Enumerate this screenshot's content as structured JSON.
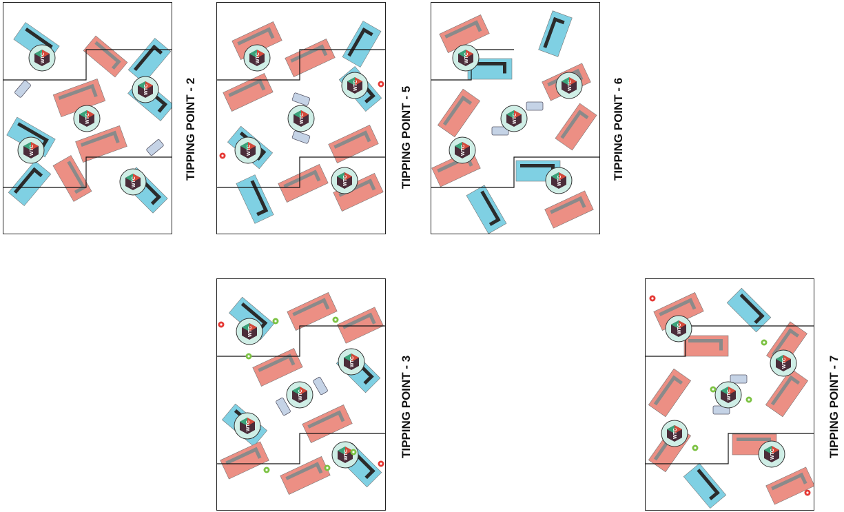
{
  "panels": [
    {
      "id": "tp2",
      "title": "TIPPING POINT - 2",
      "logo_label": "WTC"
    },
    {
      "id": "tp5",
      "title": "TIPPING POINT    - 5",
      "logo_label": "WTC"
    },
    {
      "id": "tp6",
      "title": "TIPPING POINT - 6",
      "logo_label": "WTC"
    },
    {
      "id": "tp3",
      "title": "TIPPING POINT - 3",
      "logo_label": "WTC"
    },
    {
      "id": "tp7",
      "title": "TIPPING POINT - 7",
      "logo_label": "WTC"
    }
  ],
  "colors": {
    "blue_zone": "#7fd0e3",
    "red_zone": "#ec8f84",
    "bar_dark": "#2b2b2b",
    "bar_grey": "#8a8a8a",
    "logo_ring": "#cfeee6",
    "chair": "#c5d3e6",
    "marker_red": "#e53935",
    "marker_green": "#7cc243"
  }
}
